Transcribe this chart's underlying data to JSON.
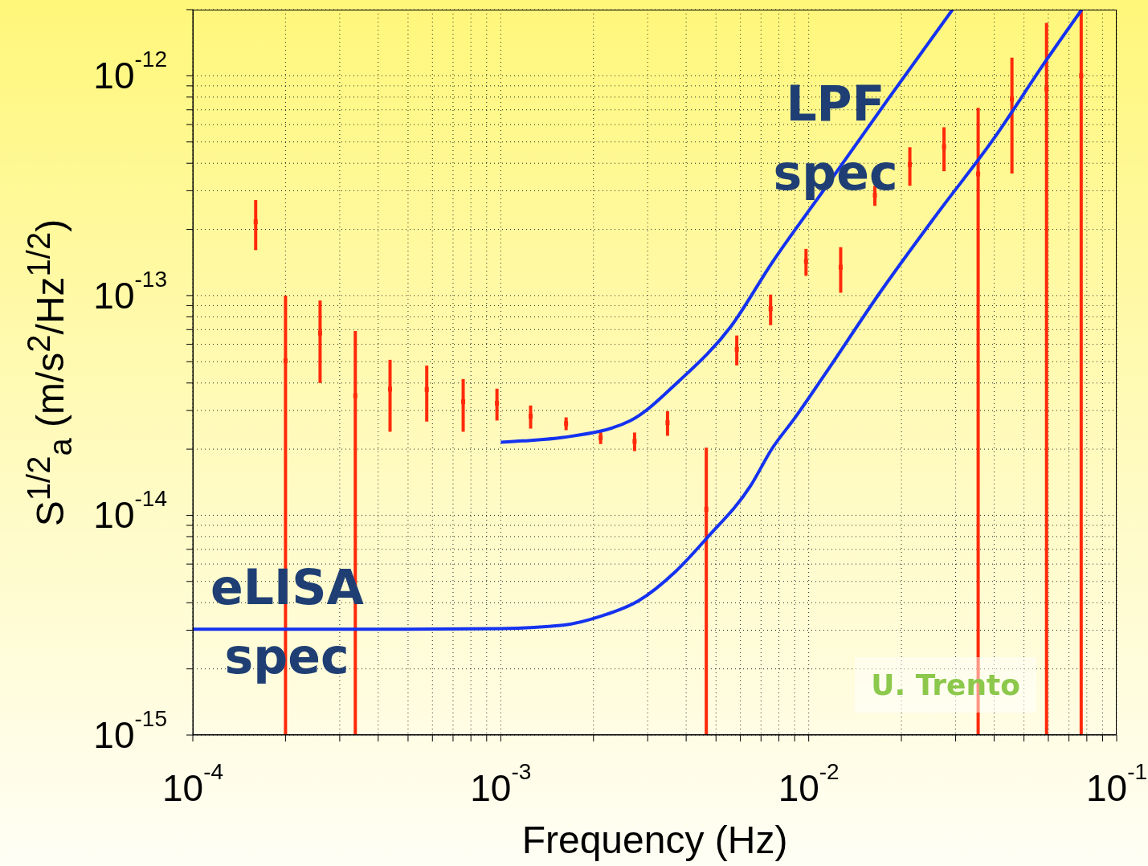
{
  "chart_data": {
    "type": "scatter",
    "xlabel": "Frequency (Hz)",
    "ylabel": "S$^{1/2}$$_{a}$ (m/s$^{2}$/Hz$^{1/2}$)",
    "log": "xy",
    "grid": true,
    "line_style": "solid",
    "xlim": [
      0.0001,
      0.1
    ],
    "ylim": [
      1e-15,
      2e-12
    ],
    "xticks": [
      {
        "value": 0.0001,
        "label": "10$^{-4}$"
      },
      {
        "value": 0.0002,
        "label": null
      },
      {
        "value": 0.0003,
        "label": null
      },
      {
        "value": 0.0004,
        "label": null
      },
      {
        "value": 0.0005,
        "label": null
      },
      {
        "value": 0.0006,
        "label": null
      },
      {
        "value": 0.0007,
        "label": null
      },
      {
        "value": 0.0008,
        "label": null
      },
      {
        "value": 0.0009,
        "label": null
      },
      {
        "value": 0.001,
        "label": "10$^{-3}$"
      },
      {
        "value": 0.002,
        "label": null
      },
      {
        "value": 0.003,
        "label": null
      },
      {
        "value": 0.004,
        "label": null
      },
      {
        "value": 0.005,
        "label": null
      },
      {
        "value": 0.006,
        "label": null
      },
      {
        "value": 0.007,
        "label": null
      },
      {
        "value": 0.008,
        "label": null
      },
      {
        "value": 0.009,
        "label": null
      },
      {
        "value": 0.01,
        "label": "10$^{-2}$"
      },
      {
        "value": 0.02,
        "label": null
      },
      {
        "value": 0.03,
        "label": null
      },
      {
        "value": 0.04,
        "label": null
      },
      {
        "value": 0.05,
        "label": null
      },
      {
        "value": 0.06,
        "label": null
      },
      {
        "value": 0.07,
        "label": null
      },
      {
        "value": 0.08,
        "label": null
      },
      {
        "value": 0.09,
        "label": null
      },
      {
        "value": 0.1,
        "label": "10$^{-1}$"
      }
    ],
    "yticks": [
      {
        "value": 1e-15,
        "label": "10$^{-15}$"
      },
      {
        "value": 2e-15,
        "label": null
      },
      {
        "value": 3e-15,
        "label": null
      },
      {
        "value": 4e-15,
        "label": null
      },
      {
        "value": 5e-15,
        "label": null
      },
      {
        "value": 6e-15,
        "label": null
      },
      {
        "value": 7e-15,
        "label": null
      },
      {
        "value": 8e-15,
        "label": null
      },
      {
        "value": 9e-15,
        "label": null
      },
      {
        "value": 1e-14,
        "label": "10$^{-14}$"
      },
      {
        "value": 2e-14,
        "label": null
      },
      {
        "value": 3e-14,
        "label": null
      },
      {
        "value": 4e-14,
        "label": null
      },
      {
        "value": 5e-14,
        "label": null
      },
      {
        "value": 6e-14,
        "label": null
      },
      {
        "value": 7e-14,
        "label": null
      },
      {
        "value": 8e-14,
        "label": null
      },
      {
        "value": 9e-14,
        "label": null
      },
      {
        "value": 1e-13,
        "label": "10$^{-13}$"
      },
      {
        "value": 2e-13,
        "label": null
      },
      {
        "value": 3e-13,
        "label": null
      },
      {
        "value": 4e-13,
        "label": null
      },
      {
        "value": 5e-13,
        "label": null
      },
      {
        "value": 6e-13,
        "label": null
      },
      {
        "value": 7e-13,
        "label": null
      },
      {
        "value": 8e-13,
        "label": null
      },
      {
        "value": 9e-13,
        "label": null
      },
      {
        "value": 1e-12,
        "label": "10$^{-12}$"
      },
      {
        "value": 2e-12,
        "label": null
      }
    ],
    "annotations": [
      "U. Trento"
    ],
    "series": [
      {
        "type": "scatter",
        "color": "#ff2a0a",
        "x": [
          0.00016,
          0.0002,
          0.000259,
          0.000337,
          0.000437,
          0.000575,
          0.000755,
          0.000972,
          0.00125,
          0.00163,
          0.00211,
          0.00272,
          0.00348,
          0.00465,
          0.00584,
          0.00752,
          0.0098,
          0.0127,
          0.0164,
          0.0213,
          0.0275,
          0.0355,
          0.0457,
          0.0592,
          0.0767
        ],
        "values": [
          2.165e-13,
          5.05e-14,
          6.75e-14,
          3.5e-14,
          3.75e-14,
          3.735e-14,
          3.285e-14,
          3.235e-14,
          2.82e-14,
          2.615e-14,
          2.255e-14,
          2.17e-14,
          2.64e-14,
          1.065e-14,
          5.695e-14,
          8.715e-14,
          1.43e-13,
          1.345e-13,
          2.86e-13,
          3.945e-13,
          4.755e-13,
          3.575e-13,
          7.845e-13,
          8.705e-13,
          1.0005e-12
        ],
        "errors": [
          5.55e-14,
          4.95e-14,
          2.75e-14,
          3.4e-14,
          1.35e-14,
          1.065e-14,
          8.85e-15,
          5.35e-15,
          3.4e-15,
          1.75e-15,
          1.45e-15,
          2.1e-15,
          3.4e-15,
          9.65e-15,
          8.85e-15,
          1.385e-14,
          2e-14,
          3.15e-14,
          3e-14,
          7.85e-14,
          1.075e-13,
          3.565e-13,
          4.255e-13,
          8.695e-13,
          9.995e-13
        ]
      },
      {
        "type": "line",
        "name": "LPF spec",
        "color": "#1432f0",
        "x": [
          0.001,
          0.00118,
          0.00159,
          0.00264,
          0.00378,
          0.0056,
          0.0076,
          0.0113,
          0.0182,
          0.0293
        ],
        "values": [
          2.15e-14,
          2.18e-14,
          2.26e-14,
          2.7e-14,
          4.07e-14,
          7.26e-14,
          1.41e-13,
          3.08e-13,
          7.91e-13,
          2e-12
        ]
      },
      {
        "type": "line",
        "name": "eLISA spec",
        "color": "#1432f0",
        "x": [
          0.0001,
          0.0005,
          0.001,
          0.00159,
          0.00215,
          0.00279,
          0.0037,
          0.00468,
          0.00647,
          0.0076,
          0.00901,
          0.0113,
          0.0171,
          0.0261,
          0.0398,
          0.0589,
          0.077
        ],
        "values": [
          3.03e-15,
          3.03e-15,
          3.05e-15,
          3.16e-15,
          3.5e-15,
          4.07e-15,
          5.56e-15,
          7.91e-15,
          1.36e-14,
          2.01e-14,
          2.77e-14,
          4.39e-14,
          1.04e-13,
          2.35e-13,
          5.15e-13,
          1.17e-12,
          2e-12
        ]
      }
    ]
  }
}
